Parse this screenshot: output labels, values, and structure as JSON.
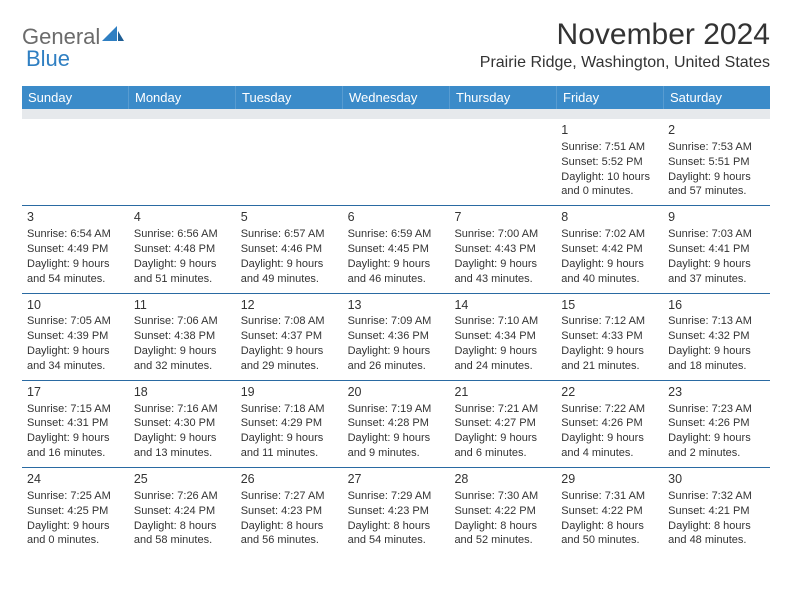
{
  "header": {
    "logo_general": "General",
    "logo_blue": "Blue",
    "month_title": "November 2024",
    "location": "Prairie Ridge, Washington, United States"
  },
  "colors": {
    "header_bg": "#3b8bc9",
    "gray_band": "#e6e9ec",
    "rule": "#2a6aa2",
    "logo_gray": "#6b6b6b",
    "logo_blue": "#2f7fc2"
  },
  "day_names": [
    "Sunday",
    "Monday",
    "Tuesday",
    "Wednesday",
    "Thursday",
    "Friday",
    "Saturday"
  ],
  "weeks": [
    [
      {
        "empty": true
      },
      {
        "empty": true
      },
      {
        "empty": true
      },
      {
        "empty": true
      },
      {
        "empty": true
      },
      {
        "num": "1",
        "sunrise": "Sunrise: 7:51 AM",
        "sunset": "Sunset: 5:52 PM",
        "day1": "Daylight: 10 hours",
        "day2": "and 0 minutes."
      },
      {
        "num": "2",
        "sunrise": "Sunrise: 7:53 AM",
        "sunset": "Sunset: 5:51 PM",
        "day1": "Daylight: 9 hours",
        "day2": "and 57 minutes."
      }
    ],
    [
      {
        "num": "3",
        "sunrise": "Sunrise: 6:54 AM",
        "sunset": "Sunset: 4:49 PM",
        "day1": "Daylight: 9 hours",
        "day2": "and 54 minutes."
      },
      {
        "num": "4",
        "sunrise": "Sunrise: 6:56 AM",
        "sunset": "Sunset: 4:48 PM",
        "day1": "Daylight: 9 hours",
        "day2": "and 51 minutes."
      },
      {
        "num": "5",
        "sunrise": "Sunrise: 6:57 AM",
        "sunset": "Sunset: 4:46 PM",
        "day1": "Daylight: 9 hours",
        "day2": "and 49 minutes."
      },
      {
        "num": "6",
        "sunrise": "Sunrise: 6:59 AM",
        "sunset": "Sunset: 4:45 PM",
        "day1": "Daylight: 9 hours",
        "day2": "and 46 minutes."
      },
      {
        "num": "7",
        "sunrise": "Sunrise: 7:00 AM",
        "sunset": "Sunset: 4:43 PM",
        "day1": "Daylight: 9 hours",
        "day2": "and 43 minutes."
      },
      {
        "num": "8",
        "sunrise": "Sunrise: 7:02 AM",
        "sunset": "Sunset: 4:42 PM",
        "day1": "Daylight: 9 hours",
        "day2": "and 40 minutes."
      },
      {
        "num": "9",
        "sunrise": "Sunrise: 7:03 AM",
        "sunset": "Sunset: 4:41 PM",
        "day1": "Daylight: 9 hours",
        "day2": "and 37 minutes."
      }
    ],
    [
      {
        "num": "10",
        "sunrise": "Sunrise: 7:05 AM",
        "sunset": "Sunset: 4:39 PM",
        "day1": "Daylight: 9 hours",
        "day2": "and 34 minutes."
      },
      {
        "num": "11",
        "sunrise": "Sunrise: 7:06 AM",
        "sunset": "Sunset: 4:38 PM",
        "day1": "Daylight: 9 hours",
        "day2": "and 32 minutes."
      },
      {
        "num": "12",
        "sunrise": "Sunrise: 7:08 AM",
        "sunset": "Sunset: 4:37 PM",
        "day1": "Daylight: 9 hours",
        "day2": "and 29 minutes."
      },
      {
        "num": "13",
        "sunrise": "Sunrise: 7:09 AM",
        "sunset": "Sunset: 4:36 PM",
        "day1": "Daylight: 9 hours",
        "day2": "and 26 minutes."
      },
      {
        "num": "14",
        "sunrise": "Sunrise: 7:10 AM",
        "sunset": "Sunset: 4:34 PM",
        "day1": "Daylight: 9 hours",
        "day2": "and 24 minutes."
      },
      {
        "num": "15",
        "sunrise": "Sunrise: 7:12 AM",
        "sunset": "Sunset: 4:33 PM",
        "day1": "Daylight: 9 hours",
        "day2": "and 21 minutes."
      },
      {
        "num": "16",
        "sunrise": "Sunrise: 7:13 AM",
        "sunset": "Sunset: 4:32 PM",
        "day1": "Daylight: 9 hours",
        "day2": "and 18 minutes."
      }
    ],
    [
      {
        "num": "17",
        "sunrise": "Sunrise: 7:15 AM",
        "sunset": "Sunset: 4:31 PM",
        "day1": "Daylight: 9 hours",
        "day2": "and 16 minutes."
      },
      {
        "num": "18",
        "sunrise": "Sunrise: 7:16 AM",
        "sunset": "Sunset: 4:30 PM",
        "day1": "Daylight: 9 hours",
        "day2": "and 13 minutes."
      },
      {
        "num": "19",
        "sunrise": "Sunrise: 7:18 AM",
        "sunset": "Sunset: 4:29 PM",
        "day1": "Daylight: 9 hours",
        "day2": "and 11 minutes."
      },
      {
        "num": "20",
        "sunrise": "Sunrise: 7:19 AM",
        "sunset": "Sunset: 4:28 PM",
        "day1": "Daylight: 9 hours",
        "day2": "and 9 minutes."
      },
      {
        "num": "21",
        "sunrise": "Sunrise: 7:21 AM",
        "sunset": "Sunset: 4:27 PM",
        "day1": "Daylight: 9 hours",
        "day2": "and 6 minutes."
      },
      {
        "num": "22",
        "sunrise": "Sunrise: 7:22 AM",
        "sunset": "Sunset: 4:26 PM",
        "day1": "Daylight: 9 hours",
        "day2": "and 4 minutes."
      },
      {
        "num": "23",
        "sunrise": "Sunrise: 7:23 AM",
        "sunset": "Sunset: 4:26 PM",
        "day1": "Daylight: 9 hours",
        "day2": "and 2 minutes."
      }
    ],
    [
      {
        "num": "24",
        "sunrise": "Sunrise: 7:25 AM",
        "sunset": "Sunset: 4:25 PM",
        "day1": "Daylight: 9 hours",
        "day2": "and 0 minutes."
      },
      {
        "num": "25",
        "sunrise": "Sunrise: 7:26 AM",
        "sunset": "Sunset: 4:24 PM",
        "day1": "Daylight: 8 hours",
        "day2": "and 58 minutes."
      },
      {
        "num": "26",
        "sunrise": "Sunrise: 7:27 AM",
        "sunset": "Sunset: 4:23 PM",
        "day1": "Daylight: 8 hours",
        "day2": "and 56 minutes."
      },
      {
        "num": "27",
        "sunrise": "Sunrise: 7:29 AM",
        "sunset": "Sunset: 4:23 PM",
        "day1": "Daylight: 8 hours",
        "day2": "and 54 minutes."
      },
      {
        "num": "28",
        "sunrise": "Sunrise: 7:30 AM",
        "sunset": "Sunset: 4:22 PM",
        "day1": "Daylight: 8 hours",
        "day2": "and 52 minutes."
      },
      {
        "num": "29",
        "sunrise": "Sunrise: 7:31 AM",
        "sunset": "Sunset: 4:22 PM",
        "day1": "Daylight: 8 hours",
        "day2": "and 50 minutes."
      },
      {
        "num": "30",
        "sunrise": "Sunrise: 7:32 AM",
        "sunset": "Sunset: 4:21 PM",
        "day1": "Daylight: 8 hours",
        "day2": "and 48 minutes."
      }
    ]
  ]
}
